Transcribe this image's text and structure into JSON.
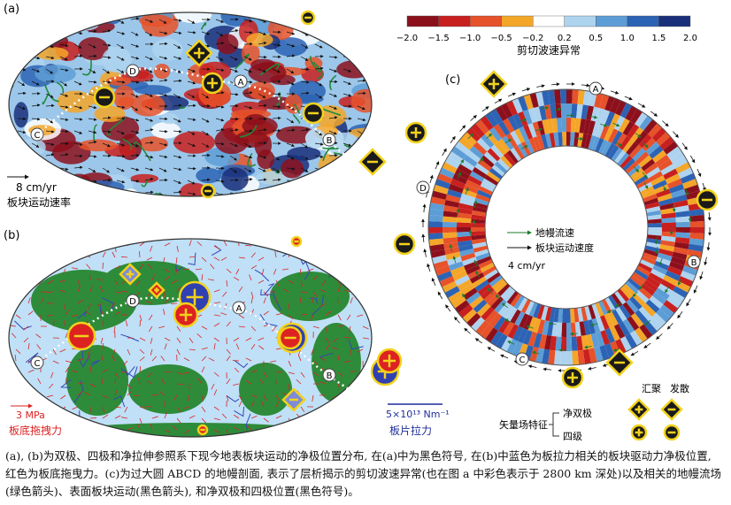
{
  "panel_a": {
    "label": "(a)",
    "points": [
      "A",
      "B",
      "C",
      "D"
    ],
    "scale_value": "8 cm/yr",
    "scale_caption": "板块运动速率"
  },
  "colorbar": {
    "title": "剪切波速异常",
    "ticks": [
      "−2.0",
      "−1.5",
      "−1.0",
      "−0.5",
      "−0.2",
      "0.2",
      "0.5",
      "1.0",
      "1.5",
      "2.0"
    ],
    "colors": [
      "#8c101c",
      "#c8201f",
      "#e6522a",
      "#f4a629",
      "#ffffff",
      "#aed3ef",
      "#5d9dd6",
      "#2d63b4",
      "#1a2f7a"
    ]
  },
  "panel_b": {
    "label": "(b)",
    "stress": "3 MPa",
    "stress_caption": "板底拖拽力",
    "force": "5×10¹³ Nm⁻¹",
    "force_caption": "板片拉力"
  },
  "panel_c": {
    "label": "(c)",
    "legend": [
      "地幔流速",
      "板块运动速度"
    ],
    "scale": "4 cm/yr"
  },
  "symbol_legend": {
    "title": "矢量场特征",
    "rows": [
      "净双极",
      "四级"
    ],
    "columns": [
      "汇聚",
      "发散"
    ]
  },
  "caption": "(a), (b)为双极、四极和净拉伸参照系下现今地表板块运动的净极位置分布, 在(a)中为黑色符号, 在(b)中蓝色为板拉力相关的板块驱动力净极位置, 红色为板底拖曳力。(c)为过大圆 ABCD 的地幔剖面, 表示了层析揭示的剪切波速异常(也在图 a 中彩色表示于 2800 km 深处)以及相关的地幔流场(绿色箭头)、表面板块运动(黑色箭头), 和净双极和四极位置(黑色符号)。"
}
